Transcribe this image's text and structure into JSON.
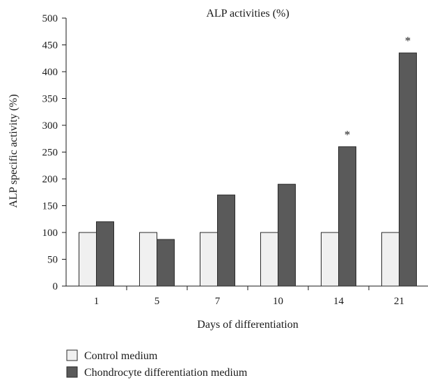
{
  "chart_data": {
    "type": "bar",
    "title": "ALP activities (%)",
    "xlabel": "Days of differentiation",
    "ylabel": "ALP specific activity (%)",
    "categories": [
      "1",
      "5",
      "7",
      "10",
      "14",
      "21"
    ],
    "series": [
      {
        "name": "Control medium",
        "values": [
          100,
          100,
          100,
          100,
          100,
          100
        ],
        "color": "#f0f0f0"
      },
      {
        "name": "Chondrocyte differentiation medium",
        "values": [
          120,
          87,
          170,
          190,
          260,
          435
        ],
        "color": "#5a5a5a"
      }
    ],
    "annotations": [
      "",
      "",
      "",
      "",
      "*",
      "*"
    ],
    "ylim": [
      0,
      500
    ],
    "yticks": [
      "0",
      "50",
      "100",
      "150",
      "200",
      "250",
      "300",
      "350",
      "400",
      "450",
      "500"
    ],
    "grid": false,
    "legend_position": "bottom-left"
  }
}
